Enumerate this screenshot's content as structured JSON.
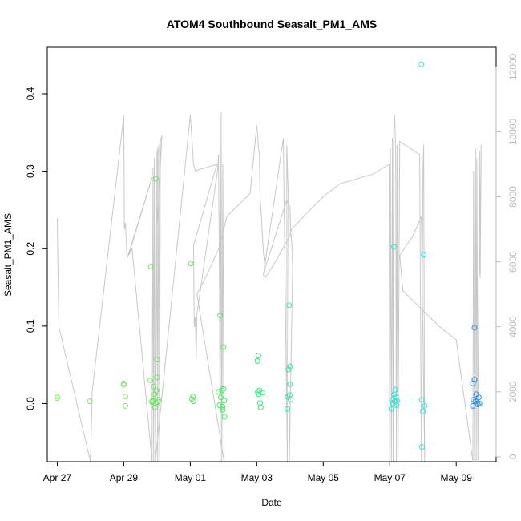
{
  "chart_data": {
    "type": "scatter",
    "title": "ATOM4 Southbound Seasalt_PM1_AMS",
    "xlabel": "Date",
    "ylabel": "Seasalt_PM1_AMS",
    "x_ticks": [
      "Apr 27",
      "Apr 29",
      "May 01",
      "May 03",
      "May 05",
      "May 07",
      "May 09"
    ],
    "x_tick_days": [
      0,
      2,
      4,
      6,
      8,
      10,
      12
    ],
    "x_start_date": "Apr 27",
    "xlim_days": [
      -0.3,
      13.2
    ],
    "ylim": [
      -0.075,
      0.46
    ],
    "y_ticks": [
      0.0,
      0.1,
      0.2,
      0.3,
      0.4
    ],
    "y2_ticks": [
      0,
      2000,
      4000,
      6000,
      8000,
      10000,
      12000
    ],
    "y2lim": [
      -150,
      12600
    ],
    "grid": false,
    "colors": {
      "axis": "#000000",
      "altitude_line": "#c8c8c8",
      "right_axis": "#bbbbbb"
    },
    "series": [
      {
        "points": [
          {
            "x": 0.0,
            "y": 0.007,
            "c": "#88e86a"
          },
          {
            "x": 0.0,
            "y": 0.009,
            "c": "#88e86a"
          },
          {
            "x": 0.98,
            "y": 0.003,
            "c": "#86e86a"
          },
          {
            "x": 2.0,
            "y": 0.024,
            "c": "#7ee86a"
          },
          {
            "x": 2.0,
            "y": 0.026,
            "c": "#7ee86a"
          },
          {
            "x": 2.05,
            "y": 0.009,
            "c": "#7ee86a"
          },
          {
            "x": 2.05,
            "y": -0.003,
            "c": "#7ee86a"
          },
          {
            "x": 2.8,
            "y": 0.03,
            "c": "#6ee860"
          },
          {
            "x": 2.82,
            "y": 0.177,
            "c": "#6ee860"
          },
          {
            "x": 2.85,
            "y": 0.002,
            "c": "#6ee860"
          },
          {
            "x": 2.88,
            "y": 0.004,
            "c": "#6ee860"
          },
          {
            "x": 2.9,
            "y": 0.022,
            "c": "#6ee860"
          },
          {
            "x": 2.92,
            "y": 0.012,
            "c": "#6ee860"
          },
          {
            "x": 2.94,
            "y": -0.005,
            "c": "#6ee860"
          },
          {
            "x": 2.96,
            "y": 0.29,
            "c": "#66e860"
          },
          {
            "x": 2.97,
            "y": 0.0,
            "c": "#66e860"
          },
          {
            "x": 2.98,
            "y": 0.017,
            "c": "#66e860"
          },
          {
            "x": 3.0,
            "y": 0.034,
            "c": "#66e860"
          },
          {
            "x": 3.0,
            "y": 0.057,
            "c": "#66e860"
          },
          {
            "x": 3.02,
            "y": 0.002,
            "c": "#66e860"
          },
          {
            "x": 3.05,
            "y": 0.005,
            "c": "#66e860"
          },
          {
            "x": 2.86,
            "y": 0.003,
            "c": "#6ee860"
          },
          {
            "x": 4.02,
            "y": 0.181,
            "c": "#55e858"
          },
          {
            "x": 4.05,
            "y": 0.006,
            "c": "#55e858"
          },
          {
            "x": 4.08,
            "y": 0.009,
            "c": "#55e858"
          },
          {
            "x": 4.1,
            "y": 0.003,
            "c": "#55e858"
          },
          {
            "x": 4.85,
            "y": 0.015,
            "c": "#44e860"
          },
          {
            "x": 4.88,
            "y": -0.002,
            "c": "#44e860"
          },
          {
            "x": 4.9,
            "y": 0.114,
            "c": "#44e860"
          },
          {
            "x": 4.92,
            "y": 0.008,
            "c": "#44e860"
          },
          {
            "x": 4.95,
            "y": 0.017,
            "c": "#44e860"
          },
          {
            "x": 4.97,
            "y": -0.004,
            "c": "#44e860"
          },
          {
            "x": 5.0,
            "y": 0.073,
            "c": "#44e860"
          },
          {
            "x": 5.0,
            "y": 0.019,
            "c": "#44e860"
          },
          {
            "x": 5.02,
            "y": 0.004,
            "c": "#44e860"
          },
          {
            "x": 5.03,
            "y": -0.017,
            "c": "#44e860"
          },
          {
            "x": 4.98,
            "y": -0.008,
            "c": "#44e860"
          },
          {
            "x": 6.02,
            "y": 0.055,
            "c": "#33e880"
          },
          {
            "x": 6.05,
            "y": 0.062,
            "c": "#33e880"
          },
          {
            "x": 6.03,
            "y": 0.015,
            "c": "#33e880"
          },
          {
            "x": 6.06,
            "y": 0.012,
            "c": "#33e880"
          },
          {
            "x": 6.08,
            "y": 0.017,
            "c": "#33e880"
          },
          {
            "x": 6.1,
            "y": 0.001,
            "c": "#33e880"
          },
          {
            "x": 6.12,
            "y": -0.005,
            "c": "#33e880"
          },
          {
            "x": 6.18,
            "y": 0.014,
            "c": "#33e880"
          },
          {
            "x": 6.95,
            "y": 0.044,
            "c": "#33e8a0"
          },
          {
            "x": 6.97,
            "y": 0.127,
            "c": "#33e8a0"
          },
          {
            "x": 7.0,
            "y": 0.048,
            "c": "#33e8a0"
          },
          {
            "x": 7.0,
            "y": 0.025,
            "c": "#33e8a0"
          },
          {
            "x": 6.92,
            "y": -0.007,
            "c": "#33e8a0"
          },
          {
            "x": 6.93,
            "y": 0.009,
            "c": "#33e8a0"
          },
          {
            "x": 6.99,
            "y": 0.011,
            "c": "#33e8a0"
          },
          {
            "x": 7.02,
            "y": 0.005,
            "c": "#33e8a0"
          },
          {
            "x": 10.05,
            "y": -0.007,
            "c": "#22e8d8"
          },
          {
            "x": 10.08,
            "y": 0.005,
            "c": "#22e8d8"
          },
          {
            "x": 10.1,
            "y": 0.0,
            "c": "#22e8d8"
          },
          {
            "x": 10.12,
            "y": 0.202,
            "c": "#22e8d8"
          },
          {
            "x": 10.13,
            "y": 0.012,
            "c": "#22e8d8"
          },
          {
            "x": 10.15,
            "y": 0.003,
            "c": "#22e8d8"
          },
          {
            "x": 10.17,
            "y": 0.018,
            "c": "#22e8d8"
          },
          {
            "x": 10.19,
            "y": 0.008,
            "c": "#22e8d8"
          },
          {
            "x": 10.2,
            "y": -0.002,
            "c": "#22e8d8"
          },
          {
            "x": 10.22,
            "y": 0.004,
            "c": "#22e8d8"
          },
          {
            "x": 10.95,
            "y": 0.438,
            "c": "#22e8e8"
          },
          {
            "x": 10.96,
            "y": 0.005,
            "c": "#22e8e8"
          },
          {
            "x": 10.97,
            "y": -0.056,
            "c": "#22e8e8"
          },
          {
            "x": 11.0,
            "y": -0.01,
            "c": "#22e8e8"
          },
          {
            "x": 11.02,
            "y": 0.192,
            "c": "#22e8e8"
          },
          {
            "x": 11.05,
            "y": -0.003,
            "c": "#22e8e8"
          },
          {
            "x": 12.55,
            "y": 0.098,
            "c": "#2a8ce8"
          },
          {
            "x": 12.52,
            "y": 0.005,
            "c": "#2a8ce8"
          },
          {
            "x": 12.5,
            "y": 0.026,
            "c": "#2a8ce8"
          },
          {
            "x": 12.55,
            "y": 0.031,
            "c": "#2a8ce8"
          },
          {
            "x": 12.58,
            "y": 0.003,
            "c": "#2a8ce8"
          },
          {
            "x": 12.6,
            "y": 0.012,
            "c": "#2a8ce8"
          },
          {
            "x": 12.62,
            "y": 0.0,
            "c": "#2a8ce8"
          },
          {
            "x": 12.5,
            "y": -0.003,
            "c": "#2a8ce8"
          },
          {
            "x": 12.65,
            "y": -0.001,
            "c": "#2a8ce8"
          },
          {
            "x": 12.68,
            "y": 0.008,
            "c": "#2a8ce8"
          },
          {
            "x": 12.7,
            "y": 0.0,
            "c": "#2a8ce8"
          }
        ]
      },
      {
        "axis": "right",
        "type": "line",
        "x": [
          0.0,
          0.0,
          0.05,
          1.0,
          1.05,
          2.0,
          2.02,
          2.05,
          2.1,
          2.85,
          2.15,
          2.2,
          2.25,
          2.85,
          2.88,
          2.9,
          2.92,
          2.95,
          3.0,
          3.02,
          3.05,
          3.08,
          3.1,
          3.15,
          3.0,
          3.02,
          2.95,
          4.0,
          4.05,
          4.1,
          4.15,
          4.8,
          4.1,
          4.12,
          4.15,
          4.18,
          4.2,
          4.82,
          4.85,
          4.88,
          4.9,
          4.93,
          4.95,
          4.98,
          5.0,
          5.02,
          4.2,
          4.3,
          4.5,
          4.9,
          5.1,
          5.8,
          6.0,
          6.02,
          6.05,
          6.08,
          6.1,
          6.15,
          6.2,
          6.25,
          6.9,
          7.0,
          7.02,
          7.05,
          7.08,
          6.98,
          6.95,
          6.9,
          6.92,
          6.8,
          6.2,
          6.25,
          6.5,
          7.0,
          7.05,
          7.5,
          8.0,
          8.5,
          9.5,
          9.98,
          10.0,
          10.02,
          10.05,
          10.08,
          10.1,
          10.12,
          10.15,
          10.18,
          10.2,
          10.22,
          10.25,
          10.3,
          10.9,
          10.95,
          11.0,
          11.02,
          11.05,
          10.95,
          10.7,
          10.3,
          10.35,
          10.4,
          11.5,
          12.0,
          12.5,
          12.52,
          12.55,
          12.58,
          12.6,
          12.62,
          12.65,
          12.7,
          12.72,
          12.75,
          12.7
        ],
        "y": [
          7300,
          7350,
          4000,
          -150,
          2000,
          10500,
          7000,
          7200,
          6100,
          8600,
          6200,
          6300,
          6400,
          -150,
          8900,
          -150,
          9200,
          -150,
          9400,
          -150,
          9600,
          -150,
          9700,
          9900,
          7000,
          9500,
          -150,
          10500,
          9800,
          9000,
          8800,
          9000,
          6500,
          4000,
          4300,
          3000,
          4400,
          8800,
          9300,
          5000,
          -150,
          10600,
          -150,
          9000,
          3000,
          -150,
          5000,
          5200,
          5600,
          6500,
          7400,
          8100,
          10200,
          10000,
          9500,
          9300,
          8000,
          7200,
          6300,
          5800,
          7900,
          7700,
          7000,
          6600,
          5800,
          -150,
          8000,
          9600,
          -150,
          9800,
          5600,
          5500,
          5900,
          6800,
          7000,
          7500,
          8000,
          8400,
          8700,
          9000,
          -150,
          9500,
          -150,
          9800,
          -150,
          9900,
          10500,
          9300,
          -150,
          9600,
          -150,
          9700,
          9300,
          -150,
          8800,
          9600,
          -150,
          7400,
          6800,
          6200,
          5600,
          5100,
          4000,
          3600,
          -150,
          8800,
          -150,
          9500,
          -150,
          9200,
          -150,
          9400,
          5500,
          9600,
          5600
        ]
      }
    ]
  }
}
